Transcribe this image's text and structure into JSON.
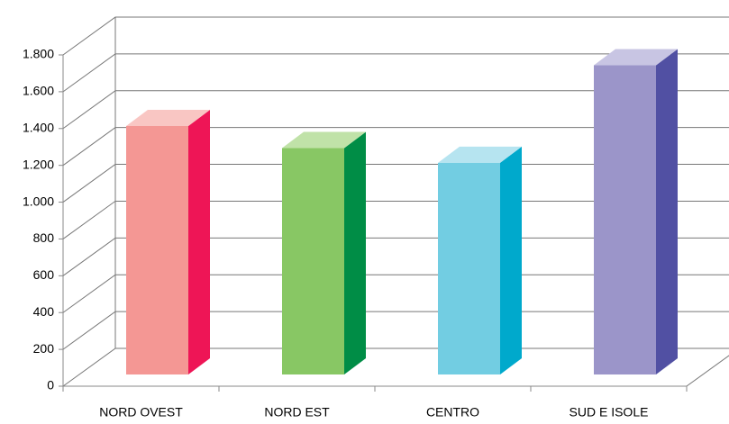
{
  "chart_data": {
    "type": "bar3d",
    "categories": [
      "NORD OVEST",
      "NORD EST",
      "CENTRO",
      "SUD E ISOLE"
    ],
    "values": [
      1350,
      1230,
      1150,
      1680
    ],
    "colors": [
      "#f49794",
      "#88c764",
      "#72cde2",
      "#9b95c9"
    ],
    "side_colors": [
      "#ee1556",
      "#008d46",
      "#00a9cc",
      "#5150a3"
    ],
    "top_colors": [
      "#f9c6c3",
      "#c0e2a8",
      "#b6e4f0",
      "#c8c5e3"
    ],
    "ylim": [
      0,
      1800
    ],
    "yticks": [
      0,
      200,
      400,
      600,
      800,
      {
        "value": 1000,
        "label": "1.000"
      },
      {
        "value": 1200,
        "label": "1.200"
      },
      {
        "value": 1400,
        "label": "1.400"
      },
      {
        "value": 1600,
        "label": "1.600"
      },
      {
        "value": 1800,
        "label": "1.800"
      }
    ],
    "grid": true
  }
}
